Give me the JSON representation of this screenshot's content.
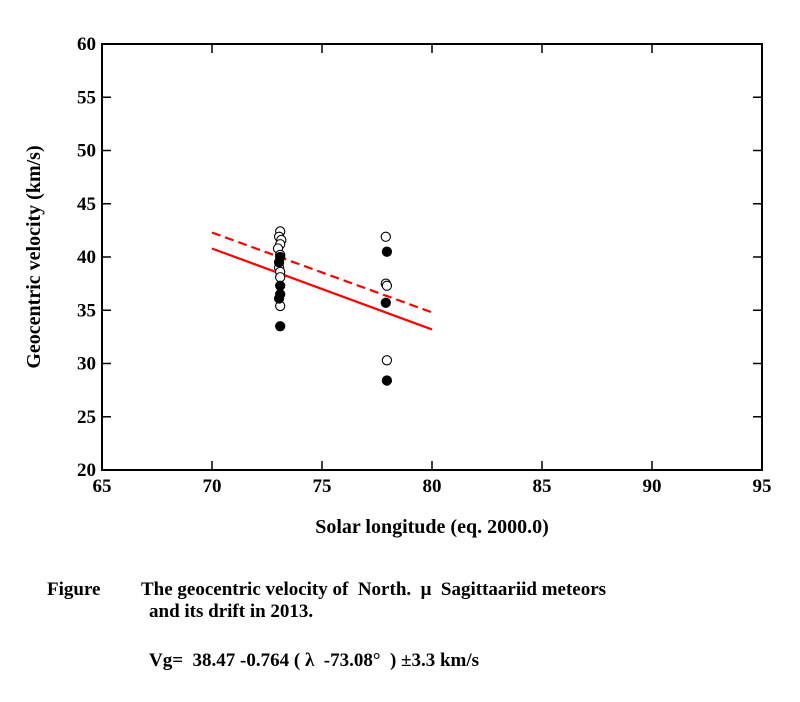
{
  "chart_data": {
    "type": "scatter",
    "xlabel": "Solar longitude (eq. 2000.0)",
    "ylabel": "Geocentric velocity (km/s)",
    "xlim": [
      65,
      95
    ],
    "ylim": [
      20,
      60
    ],
    "xticks": [
      65,
      70,
      75,
      80,
      85,
      90,
      95
    ],
    "yticks": [
      20,
      25,
      30,
      35,
      40,
      45,
      50,
      55,
      60
    ],
    "grid": false,
    "series": [
      {
        "marker": "open-circle",
        "points": [
          [
            73.1,
            42.4
          ],
          [
            73.05,
            41.9
          ],
          [
            73.15,
            41.6
          ],
          [
            73.1,
            41.2
          ],
          [
            73.0,
            40.8
          ],
          [
            73.1,
            40.2
          ],
          [
            73.05,
            39.0
          ],
          [
            73.1,
            38.6
          ],
          [
            73.1,
            38.1
          ],
          [
            73.1,
            35.4
          ],
          [
            77.9,
            41.9
          ],
          [
            77.9,
            37.5
          ],
          [
            77.95,
            37.3
          ],
          [
            77.95,
            30.3
          ]
        ]
      },
      {
        "marker": "filled-circle",
        "points": [
          [
            73.1,
            40.0
          ],
          [
            73.05,
            39.5
          ],
          [
            73.1,
            37.3
          ],
          [
            73.1,
            36.5
          ],
          [
            73.05,
            36.1
          ],
          [
            73.1,
            33.5
          ],
          [
            77.95,
            40.5
          ],
          [
            77.9,
            35.7
          ],
          [
            77.95,
            28.4
          ]
        ]
      },
      {
        "style": "solid-line",
        "color": "#ff0000",
        "points": [
          [
            70,
            40.8
          ],
          [
            80,
            33.2
          ]
        ]
      },
      {
        "style": "dashed-line",
        "color": "#ff0000",
        "points": [
          [
            70,
            42.3
          ],
          [
            80,
            34.8
          ]
        ]
      }
    ]
  },
  "caption": {
    "label": "Figure",
    "line1": "The geocentric velocity of  North.  μ  Sagittaariid meteors",
    "line2": "and its drift in 2013.",
    "formula": "Vg=  38.47 -0.764 ( λ  -73.08°  ) ±3.3 km/s"
  }
}
